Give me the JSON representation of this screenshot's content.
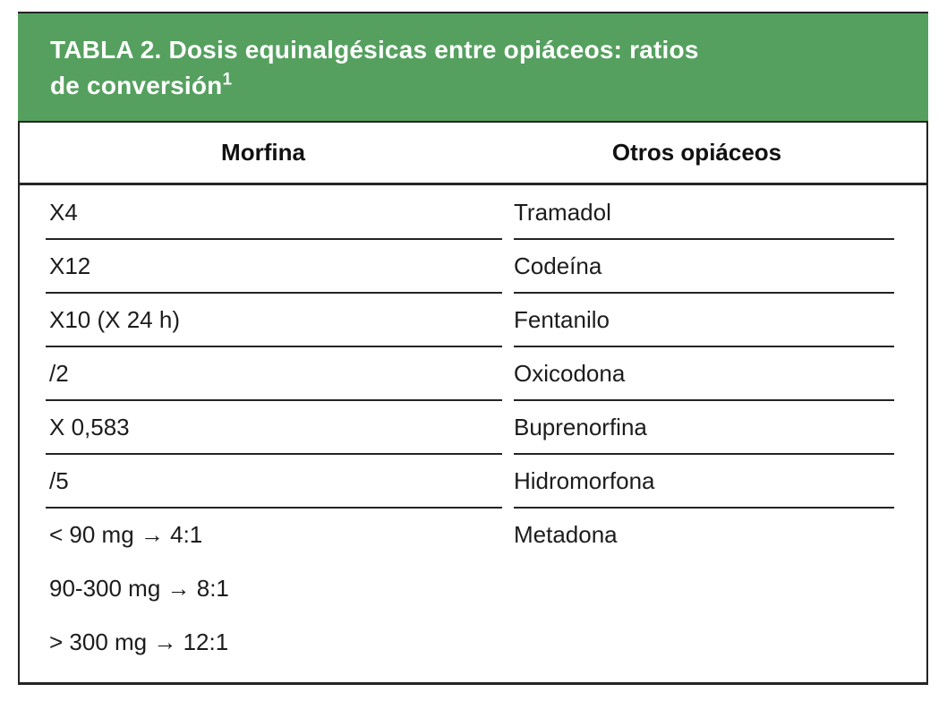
{
  "colors": {
    "header_green": "#55a05f",
    "border_dark": "#242424",
    "body_text": "#1c1c1c",
    "title_text": "#ffffff",
    "background": "#ffffff"
  },
  "title": {
    "line1": "TABLA 2. Dosis equinalgésicas entre opiáceos: ratios",
    "line2": "de conversión",
    "footnote_marker": "1"
  },
  "table": {
    "columns": [
      "Morfina",
      "Otros opiáceos"
    ],
    "rows": [
      {
        "morfina": "X4",
        "opiaceo": "Tramadol"
      },
      {
        "morfina": "X12",
        "opiaceo": "Codeína"
      },
      {
        "morfina": "X10 (X 24 h)",
        "opiaceo": "Fentanilo"
      },
      {
        "morfina": "/2",
        "opiaceo": "Oxicodona"
      },
      {
        "morfina": "X 0,583",
        "opiaceo": "Buprenorfina"
      },
      {
        "morfina": "/5",
        "opiaceo": "Hidromorfona"
      },
      {
        "morfina_lines": [
          "< 90 mg → 4:1",
          "90-300 mg → 8:1",
          "> 300 mg → 12:1"
        ],
        "opiaceo": "Metadona"
      }
    ]
  }
}
